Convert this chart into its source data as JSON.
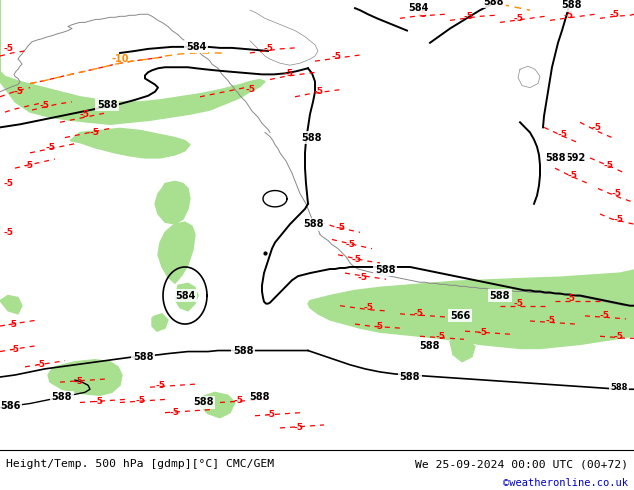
{
  "title_left": "Height/Temp. 500 hPa [gdmp][°C] CMC/GEM",
  "title_right": "We 25-09-2024 00:00 UTC (00+72)",
  "watermark": "©weatheronline.co.uk",
  "map_bg_color": "#d2d2d2",
  "green_color": "#a8e090",
  "black_contour": "#000000",
  "red_contour": "#ff0000",
  "orange_contour": "#ff8c00",
  "gray_land": "#b8b8b8",
  "watermark_color": "#0000cc",
  "bottom_bg": "#ffffff"
}
